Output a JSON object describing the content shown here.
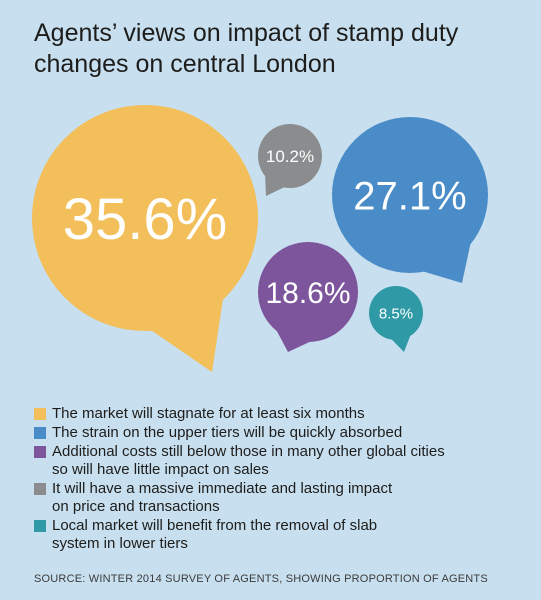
{
  "title_lines": [
    "Agents’ views on impact of stamp duty",
    "changes on central London"
  ],
  "chart_data": {
    "type": "bubble",
    "title": "Agents’ views on impact of stamp duty changes on central London",
    "series": [
      {
        "label": "35.6%",
        "value": 35.6,
        "color": "#f2bf5b",
        "legend_lines": [
          "The market will stagnate for at least six months"
        ]
      },
      {
        "label": "27.1%",
        "value": 27.1,
        "color": "#4a8cc7",
        "legend_lines": [
          "The strain on the upper tiers will be quickly absorbed"
        ]
      },
      {
        "label": "18.6%",
        "value": 18.6,
        "color": "#7d559c",
        "legend_lines": [
          "Additional costs still below those in many other global cities",
          "so will have little impact on sales"
        ]
      },
      {
        "label": "10.2%",
        "value": 10.2,
        "color": "#8a8c8e",
        "legend_lines": [
          "It will have a massive immediate and lasting impact",
          "on price and transactions"
        ]
      },
      {
        "label": "8.5%",
        "value": 8.5,
        "color": "#2f9aa6",
        "legend_lines": [
          "Local market will benefit from the removal of slab",
          "system in lower tiers"
        ]
      }
    ]
  },
  "source": "SOURCE: WINTER 2014 SURVEY OF AGENTS, SHOWING PROPORTION OF AGENTS"
}
